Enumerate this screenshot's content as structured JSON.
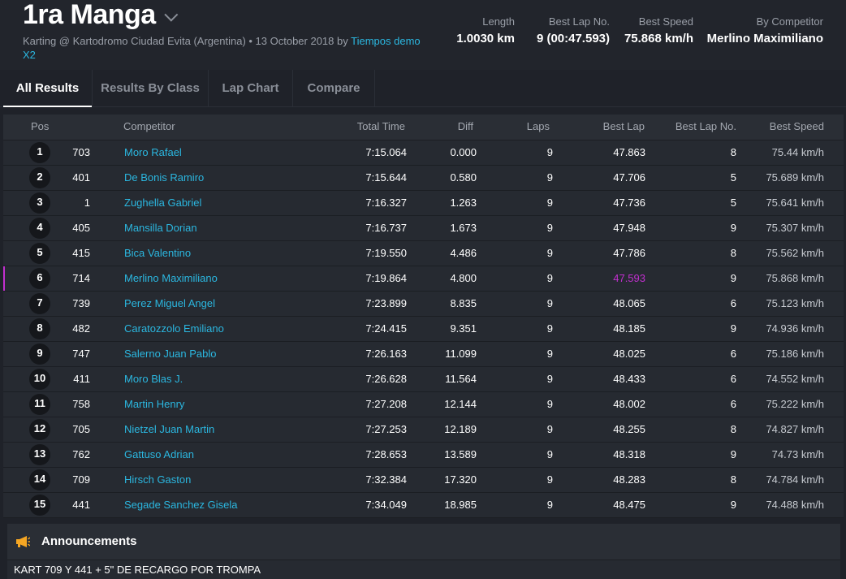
{
  "header": {
    "title": "1ra Manga",
    "subtitle_prefix": "Karting @ Kartodromo Ciudad Evita (Argentina) • 13 October 2018 by ",
    "subtitle_link": "Tiempos demo X2",
    "stats": [
      {
        "label": "Length",
        "value": "1.0030 km"
      },
      {
        "label": "Best Lap No.",
        "value": "9 (00:47.593)"
      },
      {
        "label": "Best Speed",
        "value": "75.868 km/h"
      },
      {
        "label": "By Competitor",
        "value": "Merlino Maximiliano"
      }
    ]
  },
  "tabs": [
    {
      "label": "All Results",
      "active": true
    },
    {
      "label": "Results By Class",
      "active": false
    },
    {
      "label": "Lap Chart",
      "active": false
    },
    {
      "label": "Compare",
      "active": false
    }
  ],
  "table": {
    "columns": {
      "pos": "Pos",
      "competitor": "Competitor",
      "total_time": "Total Time",
      "diff": "Diff",
      "laps": "Laps",
      "best_lap": "Best Lap",
      "best_lap_no": "Best Lap No.",
      "best_speed": "Best Speed"
    },
    "rows": [
      {
        "pos": "1",
        "no": "703",
        "name": "Moro Rafael",
        "total": "7:15.064",
        "diff": "0.000",
        "laps": "9",
        "best_lap": "47.863",
        "best_lap_no": "8",
        "speed": "75.44 km/h"
      },
      {
        "pos": "2",
        "no": "401",
        "name": "De Bonis Ramiro",
        "total": "7:15.644",
        "diff": "0.580",
        "laps": "9",
        "best_lap": "47.706",
        "best_lap_no": "5",
        "speed": "75.689 km/h"
      },
      {
        "pos": "3",
        "no": "1",
        "name": "Zughella Gabriel",
        "total": "7:16.327",
        "diff": "1.263",
        "laps": "9",
        "best_lap": "47.736",
        "best_lap_no": "5",
        "speed": "75.641 km/h"
      },
      {
        "pos": "4",
        "no": "405",
        "name": "Mansilla Dorian",
        "total": "7:16.737",
        "diff": "1.673",
        "laps": "9",
        "best_lap": "47.948",
        "best_lap_no": "9",
        "speed": "75.307 km/h"
      },
      {
        "pos": "5",
        "no": "415",
        "name": "Bica Valentino",
        "total": "7:19.550",
        "diff": "4.486",
        "laps": "9",
        "best_lap": "47.786",
        "best_lap_no": "8",
        "speed": "75.562 km/h"
      },
      {
        "pos": "6",
        "no": "714",
        "name": "Merlino Maximiliano",
        "total": "7:19.864",
        "diff": "4.800",
        "laps": "9",
        "best_lap": "47.593",
        "best_lap_no": "9",
        "speed": "75.868 km/h",
        "highlight": true
      },
      {
        "pos": "7",
        "no": "739",
        "name": "Perez Miguel Angel",
        "total": "7:23.899",
        "diff": "8.835",
        "laps": "9",
        "best_lap": "48.065",
        "best_lap_no": "6",
        "speed": "75.123 km/h"
      },
      {
        "pos": "8",
        "no": "482",
        "name": "Caratozzolo Emiliano",
        "total": "7:24.415",
        "diff": "9.351",
        "laps": "9",
        "best_lap": "48.185",
        "best_lap_no": "9",
        "speed": "74.936 km/h"
      },
      {
        "pos": "9",
        "no": "747",
        "name": "Salerno Juan Pablo",
        "total": "7:26.163",
        "diff": "11.099",
        "laps": "9",
        "best_lap": "48.025",
        "best_lap_no": "6",
        "speed": "75.186 km/h"
      },
      {
        "pos": "10",
        "no": "411",
        "name": "Moro Blas J.",
        "total": "7:26.628",
        "diff": "11.564",
        "laps": "9",
        "best_lap": "48.433",
        "best_lap_no": "6",
        "speed": "74.552 km/h"
      },
      {
        "pos": "11",
        "no": "758",
        "name": "Martin Henry",
        "total": "7:27.208",
        "diff": "12.144",
        "laps": "9",
        "best_lap": "48.002",
        "best_lap_no": "6",
        "speed": "75.222 km/h"
      },
      {
        "pos": "12",
        "no": "705",
        "name": "Nietzel Juan Martin",
        "total": "7:27.253",
        "diff": "12.189",
        "laps": "9",
        "best_lap": "48.255",
        "best_lap_no": "8",
        "speed": "74.827 km/h"
      },
      {
        "pos": "13",
        "no": "762",
        "name": "Gattuso Adrian",
        "total": "7:28.653",
        "diff": "13.589",
        "laps": "9",
        "best_lap": "48.318",
        "best_lap_no": "9",
        "speed": "74.73 km/h"
      },
      {
        "pos": "14",
        "no": "709",
        "name": "Hirsch Gaston",
        "total": "7:32.384",
        "diff": "17.320",
        "laps": "9",
        "best_lap": "48.283",
        "best_lap_no": "8",
        "speed": "74.784 km/h"
      },
      {
        "pos": "15",
        "no": "441",
        "name": "Segade Sanchez Gisela",
        "total": "7:34.049",
        "diff": "18.985",
        "laps": "9",
        "best_lap": "48.475",
        "best_lap_no": "9",
        "speed": "74.488 km/h"
      }
    ]
  },
  "announcements": {
    "title": "Announcements",
    "text": "KART 709 Y 441 + 5\" DE RECARGO POR TROMPA"
  },
  "colors": {
    "accent_link": "#2bb7e0",
    "best_lap_highlight": "#c22fcf",
    "megaphone": "#f5a623"
  },
  "icons": {
    "title_chevron": "chevron-down-icon",
    "announcements": "megaphone-icon"
  }
}
